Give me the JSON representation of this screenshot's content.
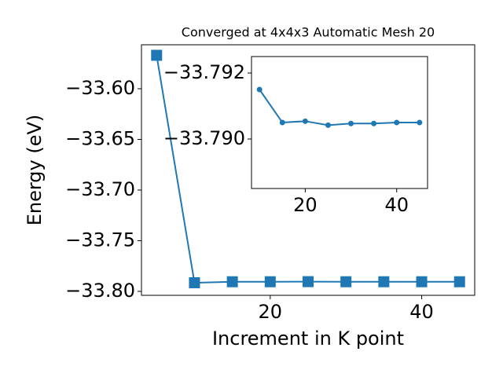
{
  "chart_data": [
    {
      "type": "line",
      "title": "Converged at 4x4x3 Automatic Mesh 20",
      "x_label": "Increment in K point",
      "y_label": "Energy (eV)",
      "x": [
        5,
        10,
        15,
        20,
        25,
        30,
        35,
        40,
        45
      ],
      "series": [
        {
          "color": "#1f77b4",
          "marker": "square",
          "values": [
            -33.567,
            -33.7915,
            -33.7905,
            -33.7905,
            -33.7904,
            -33.7905,
            -33.7905,
            -33.7905,
            -33.7905
          ]
        }
      ],
      "xlim": [
        3,
        47
      ],
      "xticks": [
        20,
        40
      ],
      "ylim": [
        -33.8039,
        -33.5566
      ],
      "yticks": [
        {
          "value": -33.6,
          "label": "−33.60"
        },
        {
          "value": -33.65,
          "label": "−33.65"
        },
        {
          "value": -33.7,
          "label": "−33.70"
        },
        {
          "value": -33.75,
          "label": "−33.75"
        },
        {
          "value": -33.8,
          "label": "−33.80"
        }
      ]
    },
    {
      "type": "line",
      "x": [
        10,
        15,
        20,
        25,
        30,
        35,
        40,
        45
      ],
      "series": [
        {
          "color": "#1f77b4",
          "marker": "circle",
          "values": [
            -33.7915,
            -33.7905,
            -33.79054,
            -33.79042,
            -33.79047,
            -33.79047,
            -33.7905,
            -33.7905
          ]
        }
      ],
      "xlim": [
        8.25,
        46.75
      ],
      "xticks": [
        20,
        40
      ],
      "ylim": [
        -33.7885,
        -33.7925
      ],
      "yticks": [
        {
          "value": -33.792,
          "label": "−33.792"
        },
        {
          "value": -33.79,
          "label": "−33.790"
        }
      ]
    }
  ]
}
